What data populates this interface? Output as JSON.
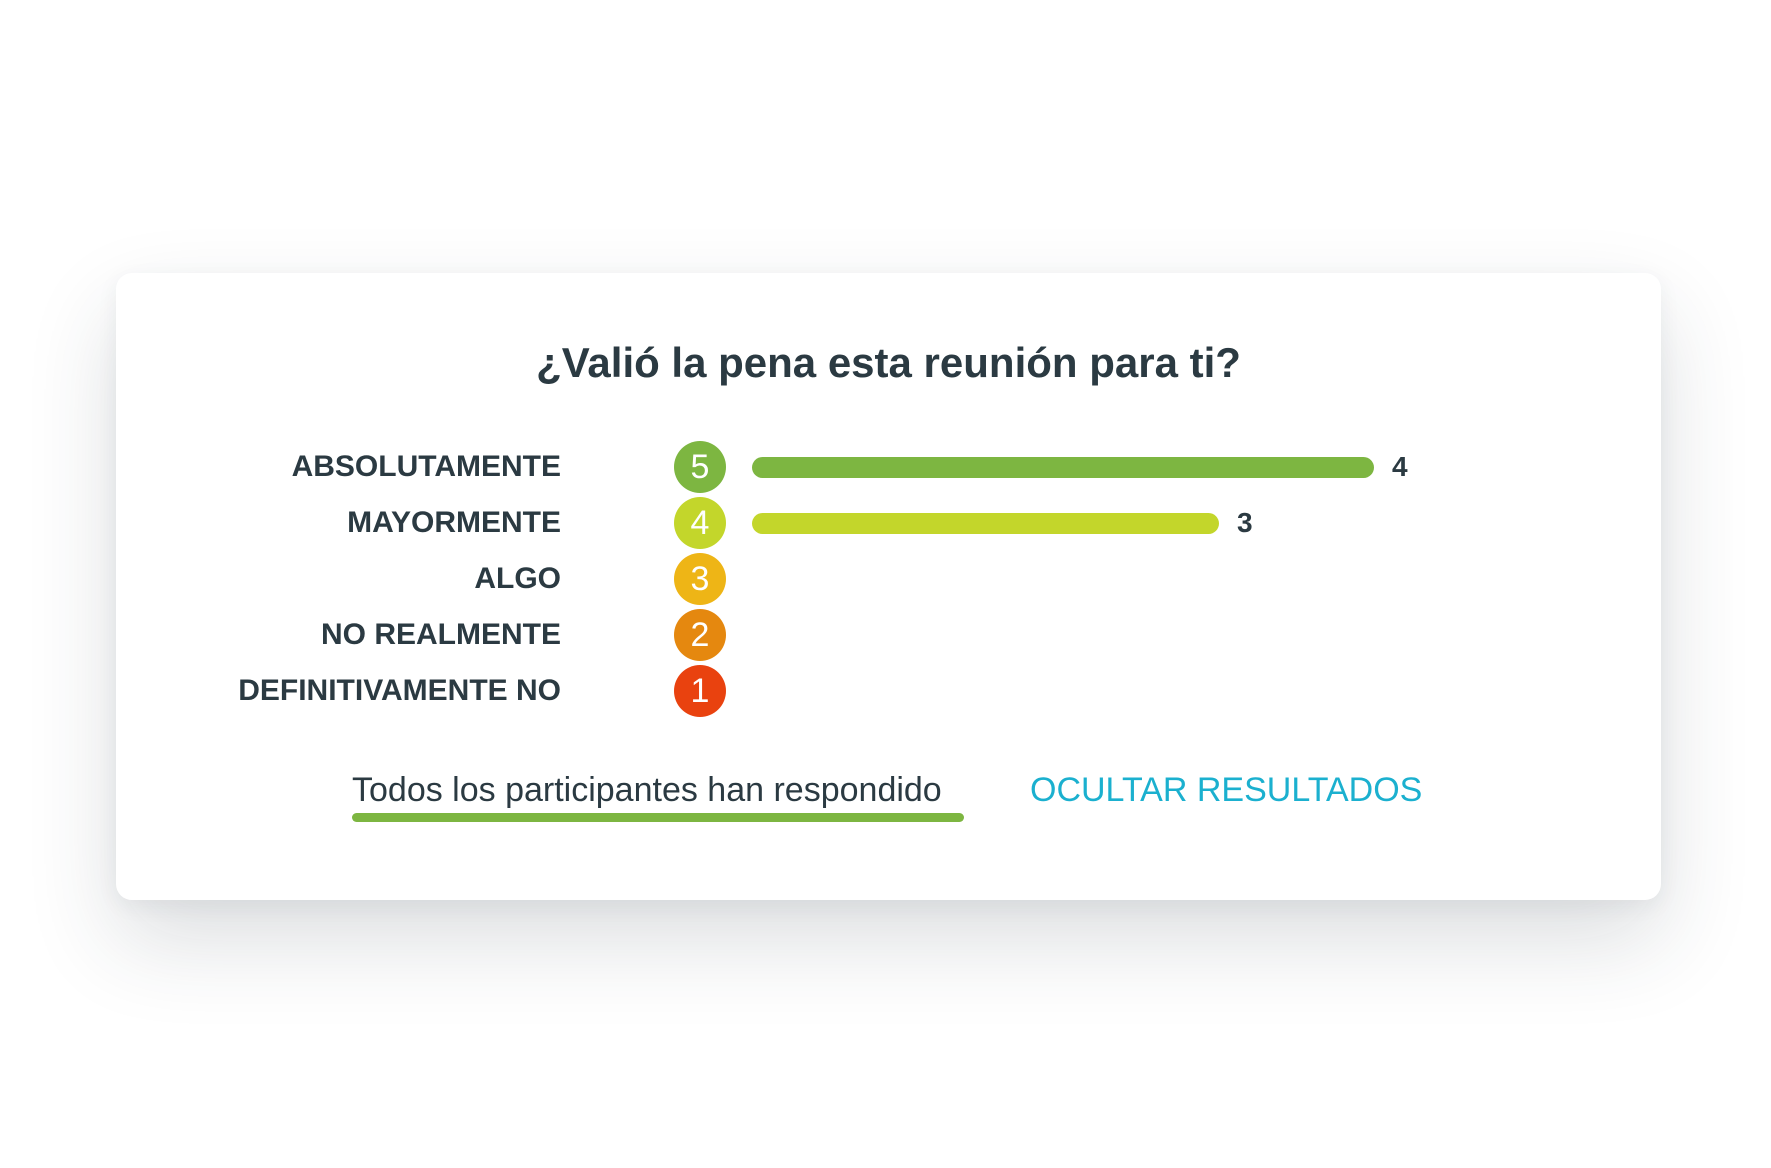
{
  "question": "¿Valió la pena esta reunión para ti?",
  "bar_max": 4,
  "options": [
    {
      "label": "ABSOLUTAMENTE",
      "score": "5",
      "count": 4,
      "color": "#7db641"
    },
    {
      "label": "MAYORMENTE",
      "score": "4",
      "count": 3,
      "color": "#c3d62b"
    },
    {
      "label": "ALGO",
      "score": "3",
      "count": 0,
      "color": "#eeb516"
    },
    {
      "label": "NO REALMENTE",
      "score": "2",
      "count": 0,
      "color": "#e5880f"
    },
    {
      "label": "DEFINITIVAMENTE NO",
      "score": "1",
      "count": 0,
      "color": "#e9420f"
    }
  ],
  "footer": {
    "status_text": "Todos los participantes han respondido",
    "status_color": "#7db641",
    "hide_results_label": "OCULTAR RESULTADOS",
    "hide_results_color": "#1bb0cf"
  }
}
